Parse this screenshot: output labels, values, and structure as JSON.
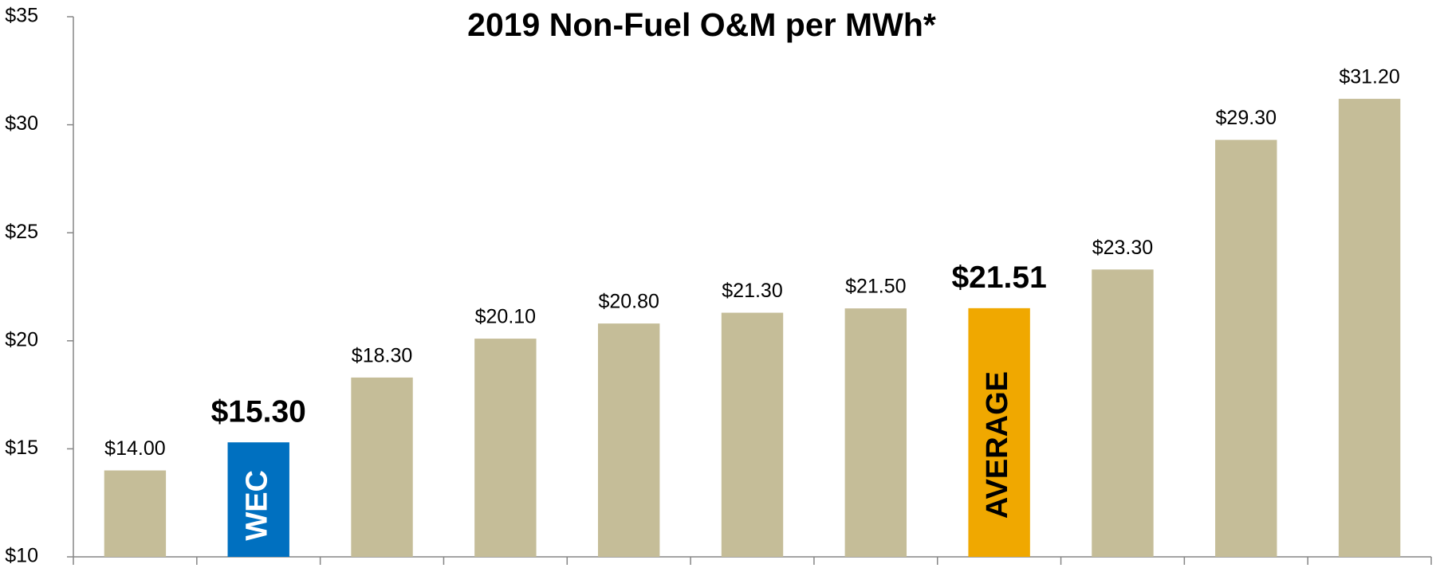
{
  "chart_data": {
    "type": "bar",
    "title": "2019 Non-Fuel O&M per MWh*",
    "categories": [
      null,
      "WEC",
      null,
      null,
      null,
      null,
      null,
      "AVERAGE",
      null,
      null,
      null
    ],
    "values": [
      14.0,
      15.3,
      18.3,
      20.1,
      20.8,
      21.3,
      21.5,
      21.51,
      23.3,
      29.3,
      31.2
    ],
    "value_labels": [
      "$14.00",
      "$15.30",
      "$18.30",
      "$20.10",
      "$20.80",
      "$21.30",
      "$21.50",
      "$21.51",
      "$23.30",
      "$29.30",
      "$31.20"
    ],
    "colors": [
      "#c5bd98",
      "#0070c0",
      "#c5bd98",
      "#c5bd98",
      "#c5bd98",
      "#c5bd98",
      "#c5bd98",
      "#f0a800",
      "#c5bd98",
      "#c5bd98",
      "#c5bd98"
    ],
    "ylim": [
      10,
      35
    ],
    "yticks": [
      {
        "value": 10,
        "label": "$10"
      },
      {
        "value": 15,
        "label": "$15"
      },
      {
        "value": 20,
        "label": "$20"
      },
      {
        "value": 25,
        "label": "$25"
      },
      {
        "value": 30,
        "label": "$30"
      },
      {
        "value": 35,
        "label": "$35"
      }
    ],
    "grid": false
  }
}
